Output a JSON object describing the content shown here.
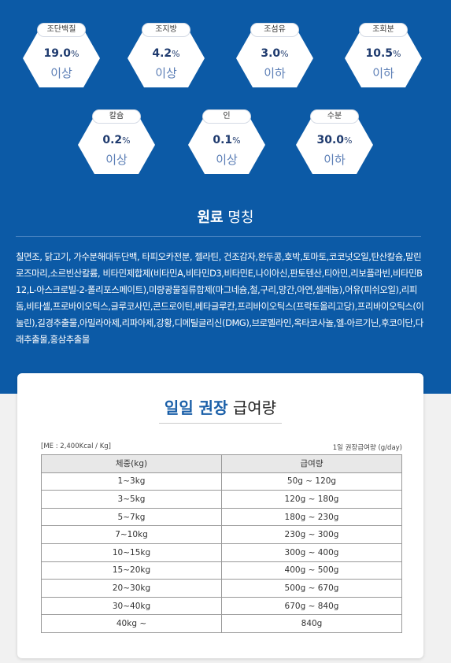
{
  "nutrients": [
    {
      "label": "조단백질",
      "value": "19.0",
      "unit": "%",
      "qualifier": "이상"
    },
    {
      "label": "조지방",
      "value": "4.2",
      "unit": "%",
      "qualifier": "이상"
    },
    {
      "label": "조섬유",
      "value": "3.0",
      "unit": "%",
      "qualifier": "이하"
    },
    {
      "label": "조회분",
      "value": "10.5",
      "unit": "%",
      "qualifier": "이하"
    },
    {
      "label": "칼슘",
      "value": "0.2",
      "unit": "%",
      "qualifier": "이상"
    },
    {
      "label": "인",
      "value": "0.1",
      "unit": "%",
      "qualifier": "이상"
    },
    {
      "label": "수분",
      "value": "30.0",
      "unit": "%",
      "qualifier": "이하"
    }
  ],
  "ingredients": {
    "title_bold": "원료",
    "title_rest": "명칭",
    "text": "칠면조, 닭고기, 가수분해대두단백, 타피오카전분, 젤라틴, 건조감자,완두콩,호박,토마토,코코넛오일,탄산칼슘,말린 로즈마리,소르빈산칼륨, 비타민제합제(비타민A,비타민D3,비타민E,나이아신,판토텐산,티아민,리보플라빈,비타민B12,L-아스크로빌-2-폴리포스페이트),미량광물질류합제(마그네슘,철,구리,망간,아연,셀레늄),어유(피쉬오일),리피돔,비타셀,프로바이오틱스,글루코사민,콘드로이틴,베타글루칸,프리바이오틱스(프락토올리고당),프리바이오틱스(이눌린),길경추출물,아밀라아제,리파아제,강황,디메틸글리신(DMG),브로멜라인,옥타코사놀,엘-아르기닌,후코이단,다래추출물,홍삼추출물"
  },
  "feeding": {
    "title_bold": "일일 권장",
    "title_rest": "급여량",
    "note_left": "[ME : 2,400Kcal / Kg]",
    "note_right": "1일 권장급여량 (g/day)",
    "table": {
      "header": [
        "체중(kg)",
        "급여량"
      ],
      "rows": [
        [
          "1~3kg",
          "50g ~ 120g"
        ],
        [
          "3~5kg",
          "120g ~ 180g"
        ],
        [
          "5~7kg",
          "180g ~ 230g"
        ],
        [
          "7~10kg",
          "230g ~ 300g"
        ],
        [
          "10~15kg",
          "300g ~ 400g"
        ],
        [
          "15~20kg",
          "400g ~ 500g"
        ],
        [
          "20~30kg",
          "500g ~ 670g"
        ],
        [
          "30~40kg",
          "670g ~ 840g"
        ],
        [
          "40kg ~",
          "840g"
        ]
      ]
    }
  }
}
